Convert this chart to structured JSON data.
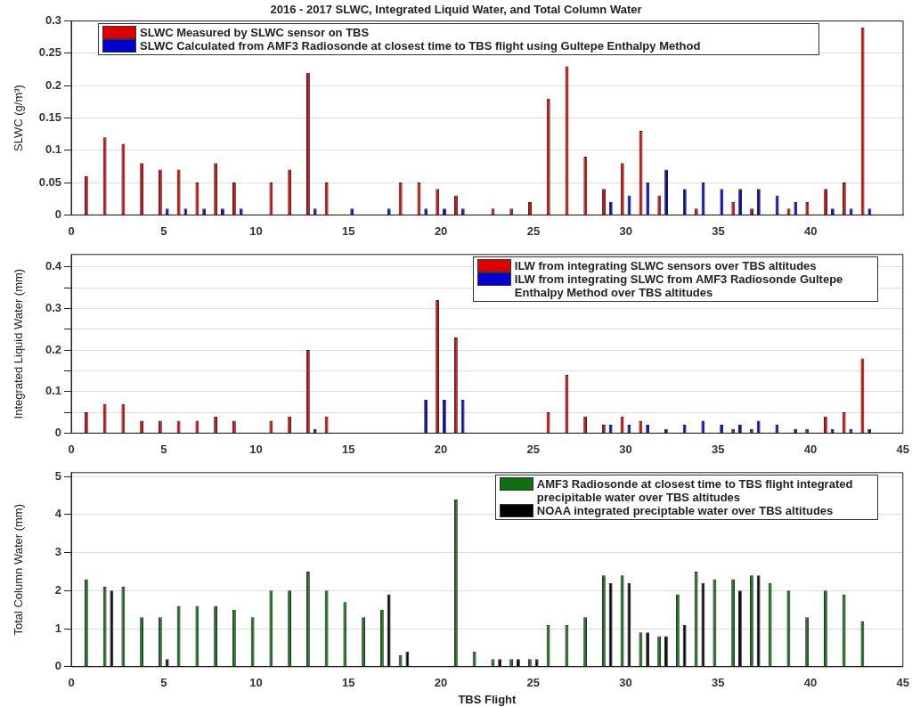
{
  "chart_data": [
    {
      "type": "bar",
      "title": "2016 - 2017 SLWC, Integrated Liquid Water, and Total Column Water",
      "ylabel": "SLWC (g/m³)",
      "x": [
        1,
        2,
        3,
        4,
        5,
        6,
        7,
        8,
        9,
        10,
        11,
        12,
        13,
        14,
        15,
        16,
        17,
        18,
        19,
        20,
        21,
        22,
        23,
        24,
        25,
        26,
        27,
        28,
        29,
        30,
        31,
        32,
        33,
        34,
        35,
        36,
        37,
        38,
        39,
        40,
        41,
        42,
        43
      ],
      "series": [
        {
          "name": "SLWC Measured by SLWC sensor on TBS",
          "color": "#e00000",
          "values": [
            0.06,
            0.12,
            0.11,
            0.08,
            0.07,
            0.07,
            0.05,
            0.08,
            0.05,
            null,
            0.05,
            0.07,
            0.22,
            0.05,
            null,
            null,
            null,
            0.05,
            0.05,
            0.04,
            0.03,
            null,
            0.01,
            0.01,
            0.02,
            0.18,
            0.23,
            0.09,
            0.04,
            0.08,
            0.13,
            0.03,
            null,
            0.01,
            null,
            0.02,
            0.01,
            null,
            0.01,
            0.02,
            0.04,
            0.05,
            0.29
          ]
        },
        {
          "name": "SLWC Calculated from AMF3 Radiosonde at closest time to TBS flight using Gultepe Enthalpy Method",
          "color": "#0000d0",
          "values": [
            null,
            null,
            null,
            null,
            0.01,
            0.01,
            0.01,
            0.01,
            0.01,
            null,
            null,
            null,
            0.01,
            null,
            0.01,
            null,
            0.01,
            null,
            0.01,
            0.01,
            0.01,
            null,
            null,
            null,
            null,
            null,
            null,
            null,
            0.02,
            0.03,
            0.05,
            0.07,
            0.04,
            0.05,
            0.04,
            0.04,
            0.04,
            0.03,
            0.02,
            null,
            0.01,
            0.01,
            0.01
          ]
        }
      ],
      "xlim": [
        0,
        45
      ],
      "xticks": [
        0,
        5,
        10,
        15,
        20,
        25,
        30,
        35,
        40
      ],
      "ylim": [
        0,
        0.3
      ],
      "yticks": [
        0,
        0.05,
        0.1,
        0.15,
        0.2,
        0.25,
        0.3
      ],
      "grid": "y",
      "legend": "top left"
    },
    {
      "type": "bar",
      "ylabel": "Integrated Liquid Water (mm)",
      "x": [
        1,
        2,
        3,
        4,
        5,
        6,
        7,
        8,
        9,
        10,
        11,
        12,
        13,
        14,
        15,
        16,
        17,
        18,
        19,
        20,
        21,
        22,
        23,
        24,
        25,
        26,
        27,
        28,
        29,
        30,
        31,
        32,
        33,
        34,
        35,
        36,
        37,
        38,
        39,
        40,
        41,
        42,
        43
      ],
      "series": [
        {
          "name": "ILW from integrating SLWC sensors over TBS altitudes",
          "color": "#e00000",
          "values": [
            0.05,
            0.07,
            0.07,
            0.03,
            0.03,
            0.03,
            0.03,
            0.04,
            0.03,
            null,
            0.03,
            0.04,
            0.2,
            0.04,
            null,
            null,
            null,
            null,
            null,
            0.32,
            0.23,
            null,
            null,
            null,
            null,
            0.05,
            0.14,
            0.04,
            0.02,
            0.04,
            0.03,
            null,
            null,
            null,
            null,
            0.01,
            0.01,
            null,
            null,
            0.01,
            0.04,
            0.05,
            0.18
          ]
        },
        {
          "name": "ILW from integrating SLWC from AMF3 Radiosonde Gultepe Enthalpy Method over TBS altitudes",
          "color": "#0000d0",
          "values": [
            null,
            null,
            null,
            null,
            null,
            null,
            null,
            null,
            null,
            null,
            null,
            null,
            0.01,
            null,
            null,
            null,
            null,
            null,
            0.08,
            0.08,
            0.08,
            null,
            null,
            null,
            null,
            null,
            null,
            null,
            0.02,
            0.02,
            0.02,
            0.01,
            0.02,
            0.03,
            0.02,
            0.02,
            0.03,
            0.02,
            0.01,
            null,
            0.01,
            0.01,
            0.01
          ]
        }
      ],
      "xlim": [
        0,
        45
      ],
      "xticks": [
        0,
        5,
        10,
        15,
        20,
        25,
        30,
        35,
        40,
        45
      ],
      "ylim": [
        0,
        0.43
      ],
      "yticks": [
        0,
        {
          "value": 0.05,
          "label": null
        },
        0.1,
        {
          "value": 0.15,
          "label": null
        },
        0.2,
        {
          "value": 0.25,
          "label": null
        },
        0.3,
        {
          "value": 0.35,
          "label": null
        },
        0.4
      ],
      "grid": "y",
      "legend": "top right"
    },
    {
      "type": "bar",
      "xlabel": "TBS Flight",
      "ylabel": "Total Column Water (mm)",
      "x": [
        1,
        2,
        3,
        4,
        5,
        6,
        7,
        8,
        9,
        10,
        11,
        12,
        13,
        14,
        15,
        16,
        17,
        18,
        19,
        20,
        21,
        22,
        23,
        24,
        25,
        26,
        27,
        28,
        29,
        30,
        31,
        32,
        33,
        34,
        35,
        36,
        37,
        38,
        39,
        40,
        41,
        42,
        43
      ],
      "series": [
        {
          "name": "AMF3 Radiosonde at closest time to TBS flight integrated precipitable water over TBS altitudes",
          "color": "#107010",
          "values": [
            2.3,
            2.1,
            2.1,
            1.3,
            1.3,
            1.6,
            1.6,
            1.6,
            1.5,
            1.3,
            2,
            2,
            2.5,
            2,
            1.7,
            1.3,
            1.5,
            0.3,
            null,
            null,
            4.4,
            0.4,
            0.2,
            0.2,
            0.2,
            1.1,
            1.1,
            1.3,
            2.4,
            2.4,
            0.9,
            0.8,
            1.9,
            2.5,
            2.3,
            2.3,
            2.4,
            2.2,
            2,
            1.3,
            2,
            1.9,
            1.2
          ]
        },
        {
          "name": "NOAA integrated preciptable water over TBS altitudes",
          "color": "#000000",
          "values": [
            null,
            2,
            null,
            null,
            0.2,
            null,
            null,
            null,
            null,
            null,
            null,
            null,
            null,
            null,
            null,
            null,
            1.9,
            0.4,
            null,
            null,
            null,
            null,
            0.2,
            0.2,
            0.2,
            null,
            null,
            null,
            2.2,
            2.2,
            0.9,
            0.8,
            1.1,
            2.2,
            null,
            2,
            2.4,
            null,
            null,
            null,
            null,
            null,
            null
          ]
        }
      ],
      "xlim": [
        0,
        45
      ],
      "xticks": [
        0,
        5,
        10,
        15,
        20,
        25,
        30,
        35,
        40,
        45
      ],
      "ylim": [
        0,
        5.1
      ],
      "yticks": [
        0,
        1,
        2,
        3,
        4,
        5
      ],
      "grid": "y",
      "legend": "top right"
    }
  ]
}
